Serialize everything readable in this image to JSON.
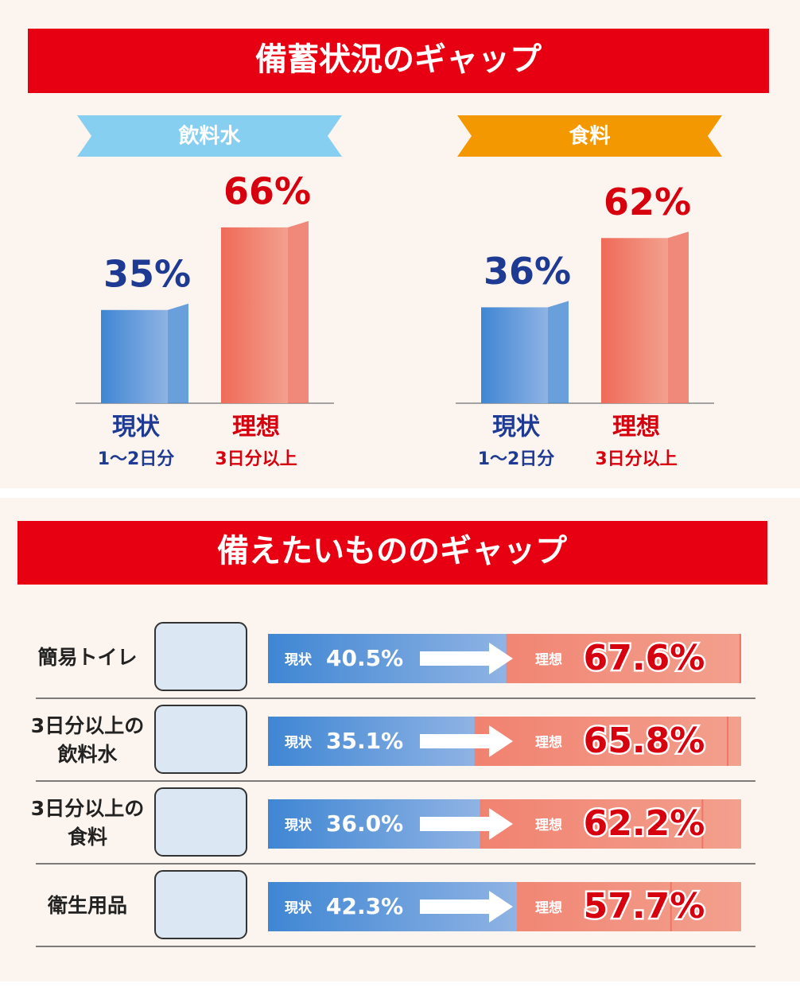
{
  "section_titles": [
    "備蓄状況のギャップ",
    "備えたいもののギャップ"
  ],
  "chart_data": [
    {
      "type": "bar",
      "title": "飲料水",
      "title_color": "#87cff0",
      "categories": [
        "現状",
        "理想"
      ],
      "subcategories": [
        "1～2日分",
        "3日分以上"
      ],
      "values": [
        35,
        66
      ],
      "value_labels": [
        "35%",
        "66%"
      ],
      "colors": [
        "#4f8fd6",
        "#ef7565"
      ],
      "label_colors": [
        "#1f3a93",
        "#d7000f"
      ]
    },
    {
      "type": "bar",
      "title": "食料",
      "title_color": "#f39800",
      "categories": [
        "現状",
        "理想"
      ],
      "subcategories": [
        "1～2日分",
        "3日分以上"
      ],
      "values": [
        36,
        62
      ],
      "value_labels": [
        "36%",
        "62%"
      ],
      "colors": [
        "#4f8fd6",
        "#ef7565"
      ],
      "label_colors": [
        "#1f3a93",
        "#d7000f"
      ]
    },
    {
      "type": "gap",
      "categories": [
        [
          "簡易トイレ"
        ],
        [
          "3日分以上の",
          "飲料水"
        ],
        [
          "3日分以上の",
          "食料"
        ],
        [
          "衛生用品"
        ]
      ],
      "series": [
        {
          "name": "現状",
          "color": "#4f8fd6",
          "values": [
            40.5,
            35.1,
            36.0,
            42.3
          ],
          "value_labels": [
            "40.5%",
            "35.1%",
            "36.0%",
            "42.3%"
          ]
        },
        {
          "name": "理想",
          "color": "#ef7565",
          "values": [
            67.6,
            65.8,
            62.2,
            57.7
          ],
          "value_labels": [
            "67.6%",
            "65.8%",
            "62.2%",
            "57.7%"
          ]
        }
      ]
    }
  ]
}
